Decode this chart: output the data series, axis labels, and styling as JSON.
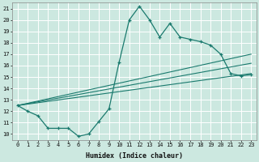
{
  "xlabel": "Humidex (Indice chaleur)",
  "background_color": "#cce8e0",
  "grid_color": "#ffffff",
  "line_color": "#1a7a6e",
  "xlim": [
    -0.5,
    23.5
  ],
  "ylim": [
    9.5,
    21.5
  ],
  "xticks": [
    0,
    1,
    2,
    3,
    4,
    5,
    6,
    7,
    8,
    9,
    10,
    11,
    12,
    13,
    14,
    15,
    16,
    17,
    18,
    19,
    20,
    21,
    22,
    23
  ],
  "yticks": [
    10,
    11,
    12,
    13,
    14,
    15,
    16,
    17,
    18,
    19,
    20,
    21
  ],
  "main_x": [
    0,
    1,
    2,
    3,
    4,
    5,
    6,
    7,
    8,
    9,
    10,
    11,
    12,
    13,
    14,
    15,
    16,
    17,
    18,
    19,
    20,
    21,
    22,
    23
  ],
  "main_y": [
    12.5,
    12.0,
    11.6,
    10.5,
    10.5,
    10.5,
    9.8,
    10.0,
    11.1,
    12.2,
    16.3,
    20.0,
    21.2,
    20.0,
    18.5,
    19.7,
    18.5,
    18.3,
    18.1,
    17.8,
    17.0,
    15.3,
    15.1,
    15.2
  ],
  "trend1_x": [
    0,
    23
  ],
  "trend1_y": [
    12.5,
    15.3
  ],
  "trend2_x": [
    0,
    23
  ],
  "trend2_y": [
    12.5,
    16.2
  ],
  "trend3_x": [
    0,
    23
  ],
  "trend3_y": [
    12.5,
    17.0
  ]
}
